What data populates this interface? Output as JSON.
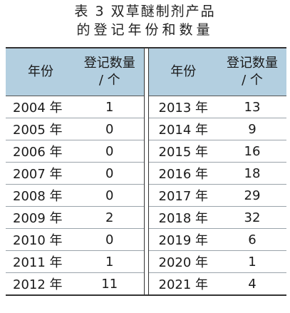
{
  "title": {
    "line1": "表 3  双草醚制剂产品",
    "line2": "的登记年份和数量"
  },
  "table": {
    "headers": {
      "year": "年份",
      "count_line1": "登记数量",
      "count_line2": "/ 个"
    },
    "left_rows": [
      {
        "year": "2004 年",
        "count": "1"
      },
      {
        "year": "2005 年",
        "count": "0"
      },
      {
        "year": "2006 年",
        "count": "0"
      },
      {
        "year": "2007 年",
        "count": "0"
      },
      {
        "year": "2008 年",
        "count": "0"
      },
      {
        "year": "2009 年",
        "count": "2"
      },
      {
        "year": "2010 年",
        "count": "0"
      },
      {
        "year": "2011 年",
        "count": "1"
      },
      {
        "year": "2012 年",
        "count": "11"
      }
    ],
    "right_rows": [
      {
        "year": "2013 年",
        "count": "13"
      },
      {
        "year": "2014 年",
        "count": "9"
      },
      {
        "year": "2015 年",
        "count": "16"
      },
      {
        "year": "2016 年",
        "count": "18"
      },
      {
        "year": "2017 年",
        "count": "29"
      },
      {
        "year": "2018 年",
        "count": "32"
      },
      {
        "year": "2019 年",
        "count": "6"
      },
      {
        "year": "2020 年",
        "count": "1"
      },
      {
        "year": "2021 年",
        "count": "4"
      }
    ]
  },
  "colors": {
    "header_bg": "#b3cfe0",
    "rule": "#333333"
  }
}
